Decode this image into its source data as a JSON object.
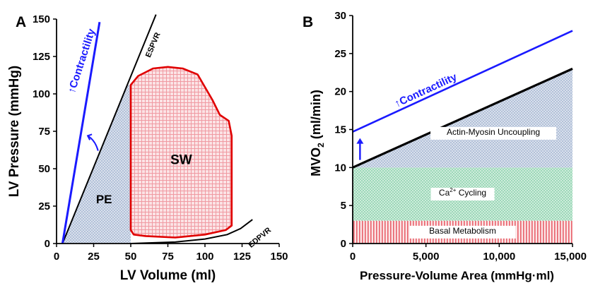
{
  "chart_data": [
    {
      "type": "line",
      "panel": "A",
      "xlabel": "LV Volume (ml)",
      "ylabel": "LV Pressure (mmHg)",
      "xlim": [
        0,
        150
      ],
      "ylim": [
        0,
        150
      ],
      "xticks": [
        0,
        25,
        50,
        75,
        100,
        125,
        150
      ],
      "yticks": [
        0,
        25,
        50,
        75,
        100,
        125,
        150
      ],
      "grid": false,
      "series": [
        {
          "name": "ESPVR",
          "color": "#000000",
          "points": [
            [
              4,
              0
            ],
            [
              67,
              153
            ]
          ]
        },
        {
          "name": "EDPVR",
          "color": "#000000",
          "points": [
            [
              50,
              0
            ],
            [
              80,
              1
            ],
            [
              100,
              3
            ],
            [
              115,
              6
            ],
            [
              124,
              10
            ],
            [
              132,
              16
            ]
          ]
        },
        {
          "name": "",
          "color": "#1a1aff",
          "points": [
            [
              4,
              0
            ],
            [
              29,
              148
            ]
          ]
        },
        {
          "name": "",
          "color": "#e00000",
          "loop": true,
          "points": [
            [
              50,
              106
            ],
            [
              55,
              112
            ],
            [
              65,
              117
            ],
            [
              75,
              118
            ],
            [
              85,
              117
            ],
            [
              95,
              113
            ],
            [
              105,
              96
            ],
            [
              110,
              86
            ],
            [
              116,
              82
            ],
            [
              118,
              72
            ],
            [
              118,
              55
            ],
            [
              118,
              12
            ],
            [
              114,
              9
            ],
            [
              100,
              6
            ],
            [
              80,
              4
            ],
            [
              60,
              5
            ],
            [
              52,
              6
            ],
            [
              50,
              9
            ],
            [
              50,
              106
            ]
          ]
        }
      ],
      "annotations": {
        "espvr": "ESPVR",
        "edpvr": "EDPVR",
        "contractility": "Contractility",
        "contractility_arrow": "↑",
        "sw": "SW",
        "pe": "PE"
      }
    },
    {
      "type": "area",
      "panel": "B",
      "xlabel": "Pressure-Volume Area (mmHg·ml)",
      "ylabel_main": "MVO",
      "ylabel_sub": "2",
      "ylabel_unit": " (ml/min)",
      "xlim": [
        0,
        15000
      ],
      "ylim": [
        0,
        30
      ],
      "xticks": [
        0,
        5000,
        10000,
        15000
      ],
      "xtick_labels": [
        "0",
        "5,000",
        "10,000",
        "15,000"
      ],
      "yticks": [
        0,
        5,
        10,
        15,
        20,
        25,
        30
      ],
      "grid": false,
      "bands": [
        {
          "name": "Basal Metabolism",
          "y0": 0,
          "y1": 3,
          "color": "#e8606a"
        },
        {
          "name": "Ca²⁺ Cycling",
          "y0": 3,
          "y1": 10,
          "color": "#8fd4b0"
        },
        {
          "name": "Actin-Myosin Uncoupling",
          "y0": 10,
          "y1_start": 10,
          "y1_end": 23,
          "color": "#a9b9d4"
        }
      ],
      "series": [
        {
          "name": "",
          "color": "#000000",
          "x": [
            0,
            15000
          ],
          "y": [
            10,
            23
          ]
        },
        {
          "name": "",
          "color": "#1a1aff",
          "x": [
            0,
            15000
          ],
          "y": [
            14.7,
            28
          ]
        }
      ],
      "annotations": {
        "contractility": "Contractility",
        "contractility_arrow": "↑",
        "band_basal": "Basal Metabolism",
        "band_ca_main": "Ca",
        "band_ca_sup": "2+",
        "band_ca_rest": " Cycling",
        "band_actin": "Actin-Myosin Uncoupling"
      }
    }
  ]
}
